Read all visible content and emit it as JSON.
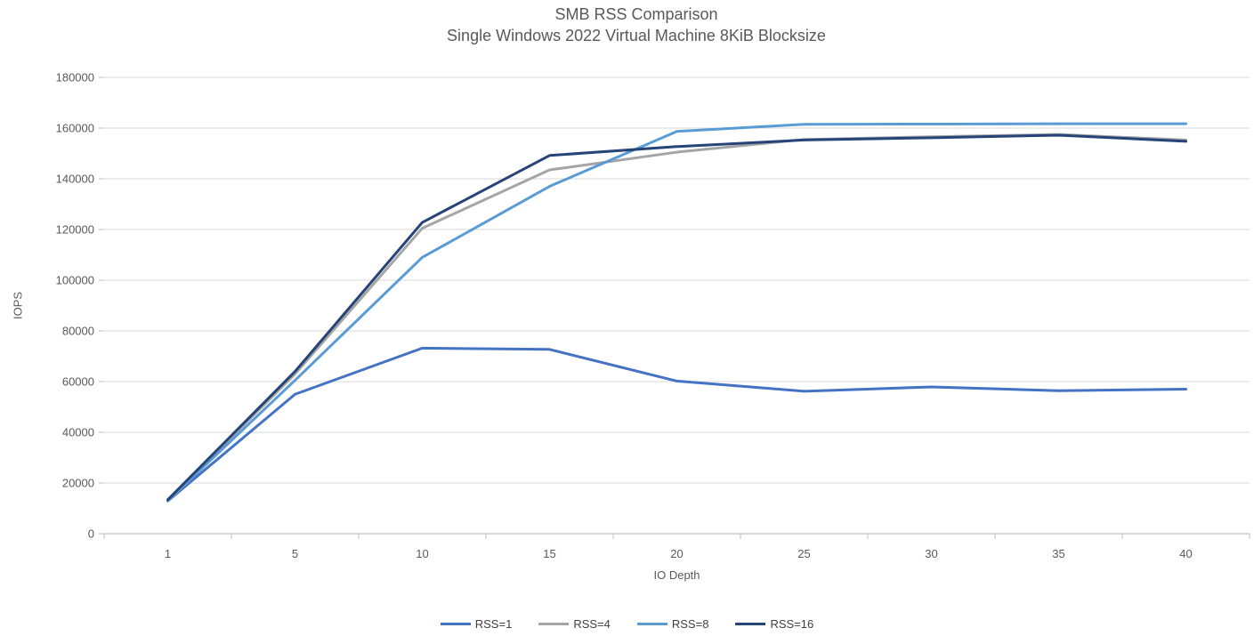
{
  "chart_data": {
    "type": "line",
    "title": "SMB RSS Comparison",
    "subtitle": "Single Windows 2022 Virtual Machine 8KiB Blocksize",
    "xlabel": "IO Depth",
    "ylabel": "IOPS",
    "categories": [
      "1",
      "5",
      "10",
      "15",
      "20",
      "25",
      "30",
      "35",
      "40"
    ],
    "series": [
      {
        "name": "RSS=1",
        "color": "#4472C4",
        "values": [
          12900,
          55000,
          73200,
          72700,
          60200,
          56200,
          57900,
          56400,
          57000
        ]
      },
      {
        "name": "RSS=4",
        "color": "#A5A5A5",
        "values": [
          13100,
          63000,
          120500,
          143500,
          150500,
          155500,
          156600,
          157500,
          155300
        ]
      },
      {
        "name": "RSS=8",
        "color": "#5B9BD5",
        "values": [
          13000,
          60500,
          109000,
          137000,
          158700,
          161500,
          161600,
          161700,
          161700
        ]
      },
      {
        "name": "RSS=16",
        "color": "#264478",
        "values": [
          13400,
          64000,
          122800,
          149200,
          152700,
          155300,
          156200,
          157200,
          154800
        ]
      }
    ],
    "ylim": [
      0,
      180000
    ],
    "ytick_step": 20000,
    "grid": "horizontal",
    "gridline_color": "#D9D9D9",
    "axis_line_color": "#BFBFBF",
    "tick_label_color": "#595959",
    "title_color": "#595959",
    "legend_position": "bottom"
  }
}
